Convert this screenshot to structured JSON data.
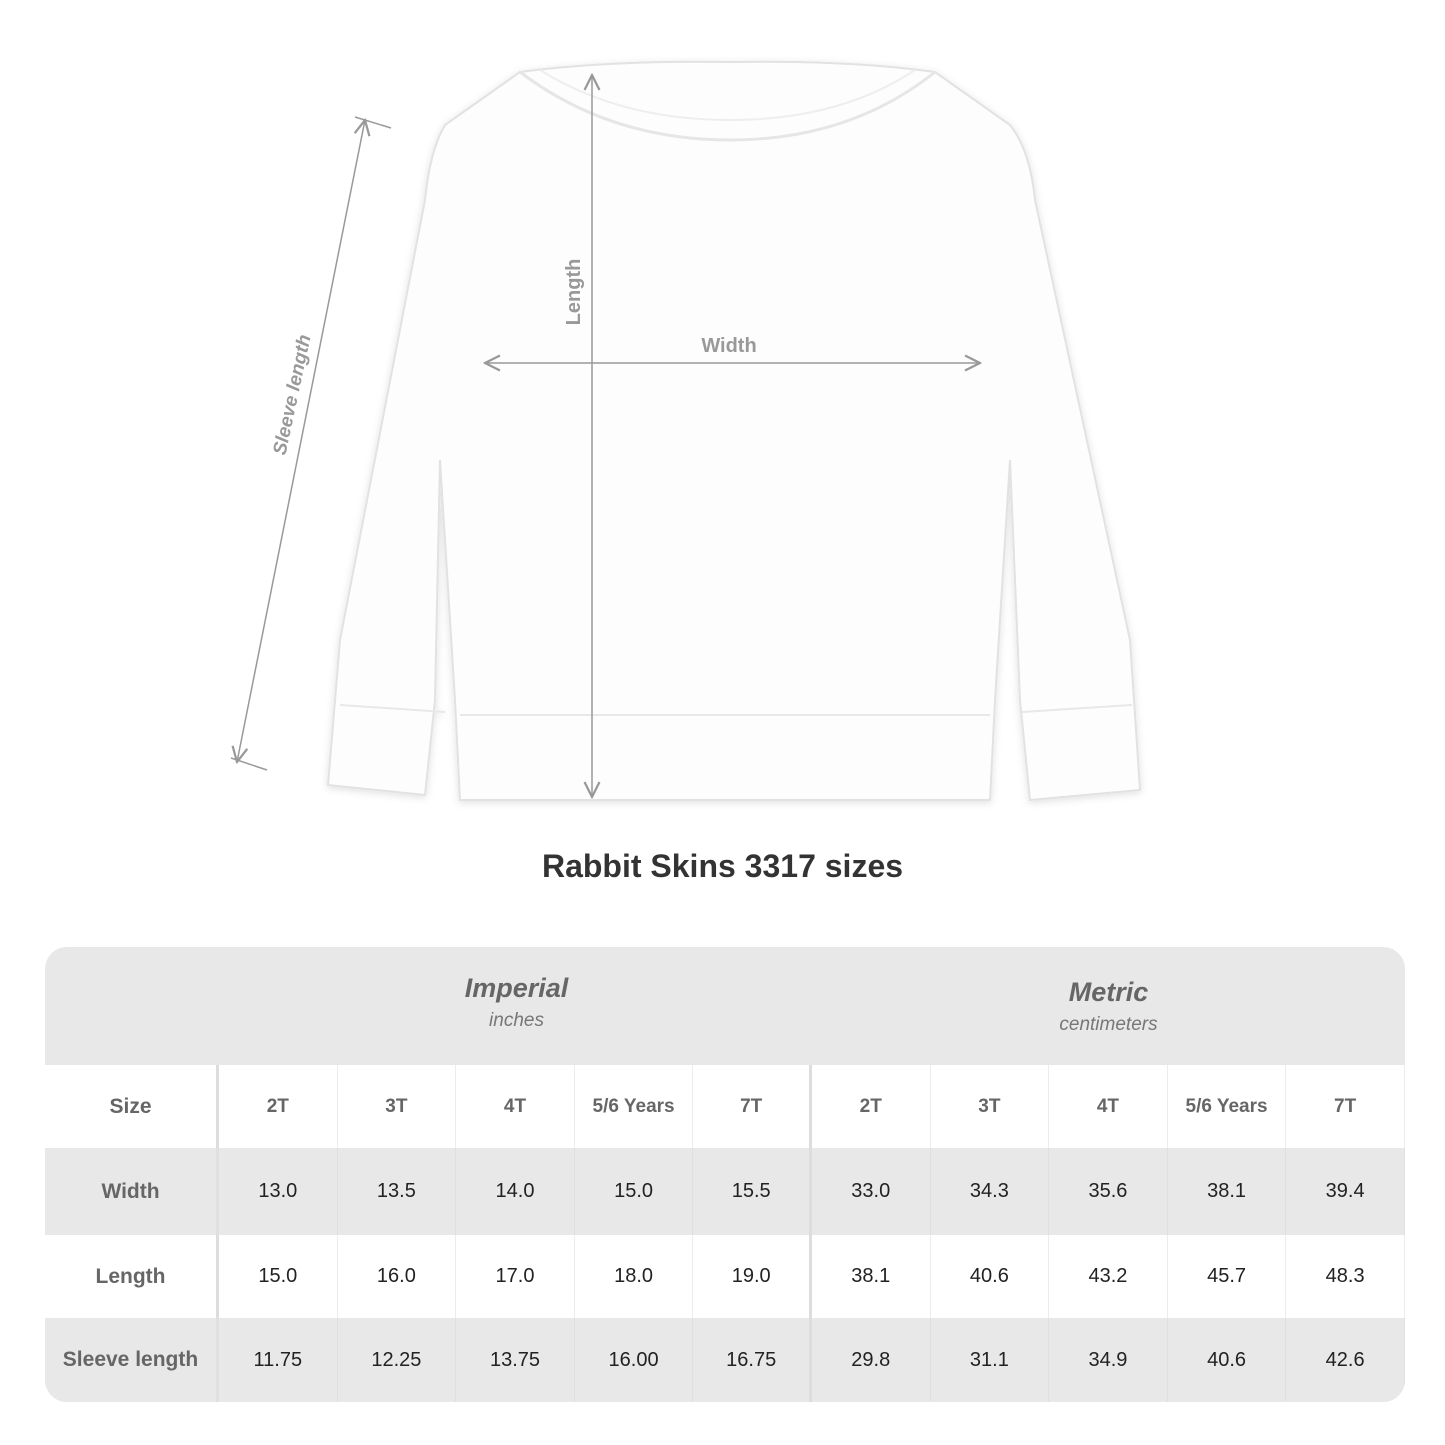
{
  "diagram": {
    "sleeve_label": "Sleeve length",
    "length_label": "Length",
    "width_label": "Width"
  },
  "title": "Rabbit Skins 3317 sizes",
  "table": {
    "imperial": {
      "label": "Imperial",
      "unit": "inches"
    },
    "metric": {
      "label": "Metric",
      "unit": "centimeters"
    },
    "size_label": "Size",
    "sizes": [
      "2T",
      "3T",
      "4T",
      "5/6 Years",
      "7T"
    ],
    "rows": [
      {
        "label": "Width",
        "imperial": [
          "13.0",
          "13.5",
          "14.0",
          "15.0",
          "15.5"
        ],
        "metric": [
          "33.0",
          "34.3",
          "35.6",
          "38.1",
          "39.4"
        ]
      },
      {
        "label": "Length",
        "imperial": [
          "15.0",
          "16.0",
          "17.0",
          "18.0",
          "19.0"
        ],
        "metric": [
          "38.1",
          "40.6",
          "43.2",
          "45.7",
          "48.3"
        ]
      },
      {
        "label": "Sleeve length",
        "imperial": [
          "11.75",
          "12.25",
          "13.75",
          "16.00",
          "16.75"
        ],
        "metric": [
          "29.8",
          "31.1",
          "34.9",
          "40.6",
          "42.6"
        ]
      }
    ]
  }
}
